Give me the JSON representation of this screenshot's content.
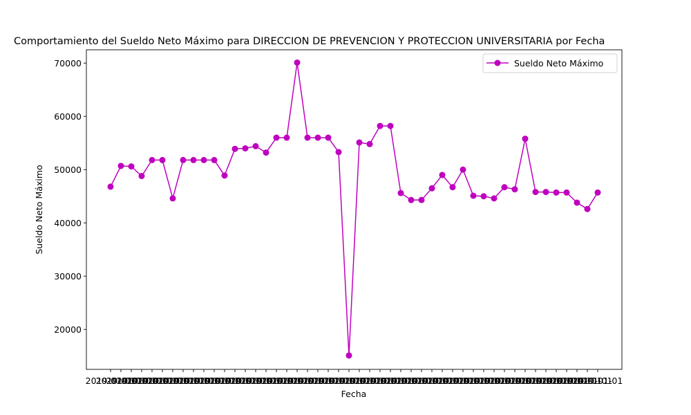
{
  "chart_data": {
    "type": "line",
    "title": "Comportamiento del Sueldo Neto Máximo para DIRECCION DE PREVENCION Y PROTECCION UNIVERSITARIA por Fecha",
    "xlabel": "Fecha",
    "ylabel": "Sueldo Neto Máximo",
    "ylim": [
      12500,
      72500
    ],
    "yticks": [
      20000,
      30000,
      40000,
      50000,
      60000,
      70000
    ],
    "grid": false,
    "legend_position": "top-right",
    "color": "#bf00bf",
    "x_tick_label_text": "2019-01-01",
    "series": [
      {
        "name": "Sueldo Neto Máximo",
        "values": [
          46800,
          50700,
          50600,
          48800,
          51800,
          51800,
          44600,
          51800,
          51800,
          51800,
          51800,
          48900,
          53900,
          54000,
          54400,
          53200,
          56000,
          56000,
          70100,
          56000,
          56000,
          56000,
          53300,
          15100,
          55100,
          54800,
          58200,
          58200,
          45600,
          44300,
          44300,
          46500,
          49000,
          46700,
          50000,
          45100,
          45000,
          44600,
          46700,
          46300,
          55800,
          45800,
          45800,
          45700,
          45700,
          43800,
          42600,
          45700
        ]
      }
    ]
  }
}
